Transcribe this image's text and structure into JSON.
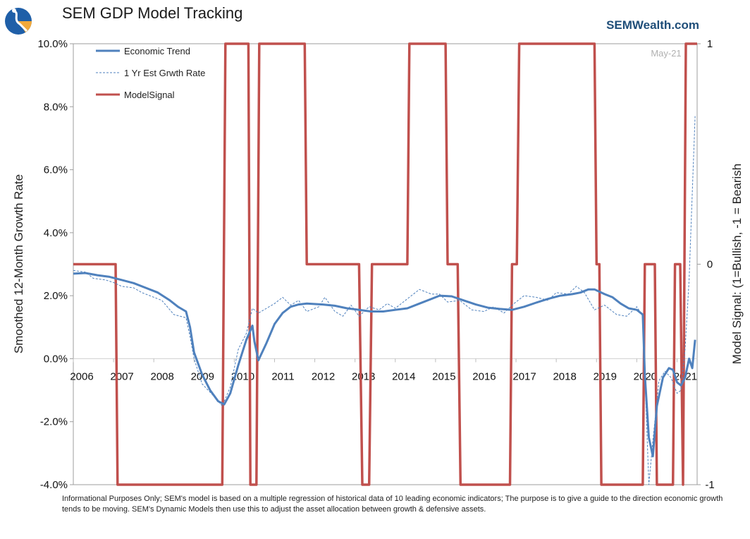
{
  "title": "SEM GDP Model Tracking",
  "brand": "SEMWealth.com",
  "footnote": "Informational Purposes Only; SEM's model is based on a multiple regression of historical data of 10 leading economic indicators; The purpose is to give a guide to the direction economic growth tends to be moving. SEM's Dynamic Models then use this to adjust the asset allocation between growth & defensive assets.",
  "colors": {
    "trend": "#4f81bd",
    "estimate": "#4f81bd",
    "signal": "#c0504d",
    "axis": "#999999"
  },
  "chart_data": {
    "type": "line",
    "ylabel": "Smoothed 12-Month Growth Rate",
    "y2label": "Model Signal: (1=Bullish, -1 = Bearish",
    "watermark": "May-21",
    "ylim": [
      -4.0,
      10.0
    ],
    "y2lim": [
      -1,
      1
    ],
    "y_ticks": [
      "10.0%",
      "8.0%",
      "6.0%",
      "4.0%",
      "2.0%",
      "0.0%",
      "-2.0%",
      "-4.0%"
    ],
    "y_tick_values": [
      10,
      8,
      6,
      4,
      2,
      0,
      -2,
      -4
    ],
    "y2_ticks": [
      "1",
      "0",
      "-1"
    ],
    "y2_tick_values": [
      1,
      0,
      -1
    ],
    "x_ticks": [
      "2006",
      "2007",
      "2008",
      "2009",
      "2010",
      "2011",
      "2012",
      "2013",
      "2014",
      "2015",
      "2016",
      "2017",
      "2018",
      "2019",
      "2020",
      "2021"
    ],
    "x_tick_values": [
      2006,
      2007,
      2008,
      2009,
      2010,
      2011,
      2012,
      2013,
      2014,
      2015,
      2016,
      2017,
      2018,
      2019,
      2020,
      2021
    ],
    "xlim": [
      2006.0,
      2021.5
    ],
    "legend_position": "top-left",
    "series": [
      {
        "name": "Economic Trend",
        "style": "solid",
        "axis": "left",
        "points": [
          [
            2006.0,
            2.7
          ],
          [
            2006.3,
            2.72
          ],
          [
            2006.6,
            2.65
          ],
          [
            2006.9,
            2.6
          ],
          [
            2007.2,
            2.5
          ],
          [
            2007.5,
            2.4
          ],
          [
            2007.8,
            2.25
          ],
          [
            2008.1,
            2.1
          ],
          [
            2008.4,
            1.85
          ],
          [
            2008.6,
            1.65
          ],
          [
            2008.8,
            1.5
          ],
          [
            2008.9,
            1.0
          ],
          [
            2009.0,
            0.2
          ],
          [
            2009.2,
            -0.5
          ],
          [
            2009.4,
            -1.0
          ],
          [
            2009.6,
            -1.35
          ],
          [
            2009.75,
            -1.45
          ],
          [
            2009.9,
            -1.1
          ],
          [
            2010.1,
            -0.2
          ],
          [
            2010.3,
            0.6
          ],
          [
            2010.45,
            1.05
          ],
          [
            2010.5,
            0.55
          ],
          [
            2010.6,
            -0.05
          ],
          [
            2010.8,
            0.5
          ],
          [
            2011.0,
            1.1
          ],
          [
            2011.2,
            1.45
          ],
          [
            2011.4,
            1.65
          ],
          [
            2011.6,
            1.72
          ],
          [
            2011.8,
            1.75
          ],
          [
            2012.2,
            1.72
          ],
          [
            2012.5,
            1.68
          ],
          [
            2012.8,
            1.6
          ],
          [
            2013.1,
            1.55
          ],
          [
            2013.4,
            1.5
          ],
          [
            2013.7,
            1.5
          ],
          [
            2014.0,
            1.55
          ],
          [
            2014.3,
            1.6
          ],
          [
            2014.6,
            1.75
          ],
          [
            2014.9,
            1.9
          ],
          [
            2015.1,
            2.0
          ],
          [
            2015.4,
            1.98
          ],
          [
            2015.7,
            1.85
          ],
          [
            2016.0,
            1.72
          ],
          [
            2016.3,
            1.62
          ],
          [
            2016.6,
            1.58
          ],
          [
            2016.9,
            1.55
          ],
          [
            2017.2,
            1.65
          ],
          [
            2017.5,
            1.78
          ],
          [
            2017.8,
            1.9
          ],
          [
            2018.1,
            2.0
          ],
          [
            2018.4,
            2.05
          ],
          [
            2018.6,
            2.1
          ],
          [
            2018.8,
            2.2
          ],
          [
            2018.95,
            2.2
          ],
          [
            2019.2,
            2.05
          ],
          [
            2019.4,
            1.95
          ],
          [
            2019.6,
            1.75
          ],
          [
            2019.8,
            1.6
          ],
          [
            2020.0,
            1.55
          ],
          [
            2020.15,
            1.4
          ],
          [
            2020.2,
            -0.5
          ],
          [
            2020.3,
            -2.5
          ],
          [
            2020.4,
            -3.1
          ],
          [
            2020.5,
            -1.5
          ],
          [
            2020.65,
            -0.6
          ],
          [
            2020.8,
            -0.3
          ],
          [
            2020.9,
            -0.35
          ],
          [
            2021.0,
            -0.75
          ],
          [
            2021.1,
            -0.85
          ],
          [
            2021.2,
            -0.6
          ],
          [
            2021.3,
            0.0
          ],
          [
            2021.38,
            -0.3
          ],
          [
            2021.45,
            0.6
          ]
        ]
      },
      {
        "name": "1 Yr Est Grwth Rate",
        "style": "dashed",
        "axis": "left",
        "points": [
          [
            2006.0,
            2.8
          ],
          [
            2006.3,
            2.75
          ],
          [
            2006.5,
            2.55
          ],
          [
            2006.8,
            2.5
          ],
          [
            2007.0,
            2.42
          ],
          [
            2007.2,
            2.3
          ],
          [
            2007.5,
            2.25
          ],
          [
            2007.7,
            2.1
          ],
          [
            2007.9,
            2.0
          ],
          [
            2008.2,
            1.85
          ],
          [
            2008.5,
            1.4
          ],
          [
            2008.8,
            1.3
          ],
          [
            2008.9,
            0.7
          ],
          [
            2009.0,
            0.0
          ],
          [
            2009.2,
            -0.8
          ],
          [
            2009.5,
            -1.2
          ],
          [
            2009.7,
            -1.5
          ],
          [
            2009.9,
            -0.9
          ],
          [
            2010.1,
            0.3
          ],
          [
            2010.3,
            0.8
          ],
          [
            2010.45,
            1.6
          ],
          [
            2010.6,
            1.45
          ],
          [
            2010.8,
            1.6
          ],
          [
            2011.0,
            1.75
          ],
          [
            2011.2,
            1.95
          ],
          [
            2011.4,
            1.7
          ],
          [
            2011.6,
            1.85
          ],
          [
            2011.8,
            1.5
          ],
          [
            2012.1,
            1.65
          ],
          [
            2012.25,
            1.95
          ],
          [
            2012.5,
            1.5
          ],
          [
            2012.7,
            1.35
          ],
          [
            2012.9,
            1.7
          ],
          [
            2013.1,
            1.35
          ],
          [
            2013.35,
            1.65
          ],
          [
            2013.6,
            1.55
          ],
          [
            2013.8,
            1.75
          ],
          [
            2014.0,
            1.6
          ],
          [
            2014.3,
            1.9
          ],
          [
            2014.6,
            2.2
          ],
          [
            2014.9,
            2.05
          ],
          [
            2015.1,
            2.05
          ],
          [
            2015.3,
            1.8
          ],
          [
            2015.6,
            1.85
          ],
          [
            2015.9,
            1.55
          ],
          [
            2016.2,
            1.5
          ],
          [
            2016.45,
            1.65
          ],
          [
            2016.7,
            1.45
          ],
          [
            2016.95,
            1.75
          ],
          [
            2017.2,
            2.0
          ],
          [
            2017.5,
            1.95
          ],
          [
            2017.8,
            1.85
          ],
          [
            2018.0,
            2.1
          ],
          [
            2018.3,
            2.05
          ],
          [
            2018.5,
            2.3
          ],
          [
            2018.7,
            2.1
          ],
          [
            2018.95,
            1.55
          ],
          [
            2019.2,
            1.7
          ],
          [
            2019.5,
            1.4
          ],
          [
            2019.75,
            1.35
          ],
          [
            2020.0,
            1.65
          ],
          [
            2020.15,
            1.35
          ],
          [
            2020.3,
            -4.0
          ],
          [
            2020.4,
            -2.6
          ],
          [
            2020.55,
            -0.7
          ],
          [
            2020.7,
            -0.4
          ],
          [
            2020.85,
            -0.6
          ],
          [
            2021.0,
            -1.1
          ],
          [
            2021.1,
            -1.0
          ],
          [
            2021.2,
            0.3
          ],
          [
            2021.3,
            2.5
          ],
          [
            2021.4,
            6.0
          ],
          [
            2021.45,
            7.7
          ]
        ]
      },
      {
        "name": "ModelSignal",
        "style": "solid",
        "axis": "right",
        "points": [
          [
            2006.0,
            0
          ],
          [
            2007.05,
            0
          ],
          [
            2007.1,
            -1
          ],
          [
            2009.7,
            -1
          ],
          [
            2009.78,
            1
          ],
          [
            2010.35,
            1
          ],
          [
            2010.4,
            -1
          ],
          [
            2010.55,
            -1
          ],
          [
            2010.62,
            1
          ],
          [
            2011.75,
            1
          ],
          [
            2011.8,
            0
          ],
          [
            2013.1,
            0
          ],
          [
            2013.18,
            -1
          ],
          [
            2013.35,
            -1
          ],
          [
            2013.42,
            0
          ],
          [
            2014.3,
            0
          ],
          [
            2014.35,
            1
          ],
          [
            2015.25,
            1
          ],
          [
            2015.3,
            0
          ],
          [
            2015.55,
            0
          ],
          [
            2015.62,
            -1
          ],
          [
            2016.85,
            -1
          ],
          [
            2016.9,
            0
          ],
          [
            2017.02,
            0
          ],
          [
            2017.08,
            1
          ],
          [
            2018.95,
            1
          ],
          [
            2019.0,
            0
          ],
          [
            2019.07,
            0
          ],
          [
            2019.12,
            -1
          ],
          [
            2020.15,
            -1
          ],
          [
            2020.2,
            0
          ],
          [
            2020.45,
            0
          ],
          [
            2020.5,
            -1
          ],
          [
            2020.9,
            -1
          ],
          [
            2020.95,
            0
          ],
          [
            2021.08,
            0
          ],
          [
            2021.15,
            -1
          ],
          [
            2021.22,
            1
          ],
          [
            2021.5,
            1
          ]
        ]
      }
    ]
  }
}
